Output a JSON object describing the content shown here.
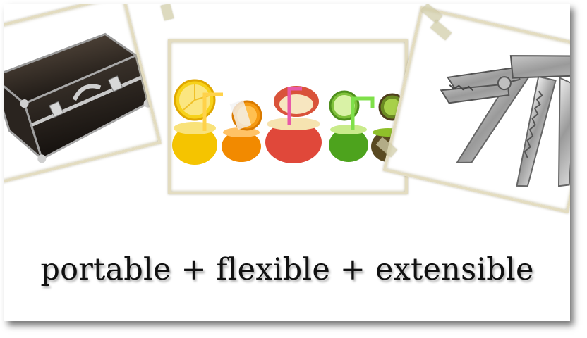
{
  "slide": {
    "tagline": "portable + flexible + extensible"
  },
  "photos": [
    {
      "id": "case",
      "subject": "briefcase-icon"
    },
    {
      "id": "fruit",
      "subject": "fruit-cups-icon"
    },
    {
      "id": "tool",
      "subject": "multitool-icon"
    }
  ],
  "colors": {
    "background": "#ffffff",
    "frame": "#e3dcc0",
    "text": "#111111"
  }
}
